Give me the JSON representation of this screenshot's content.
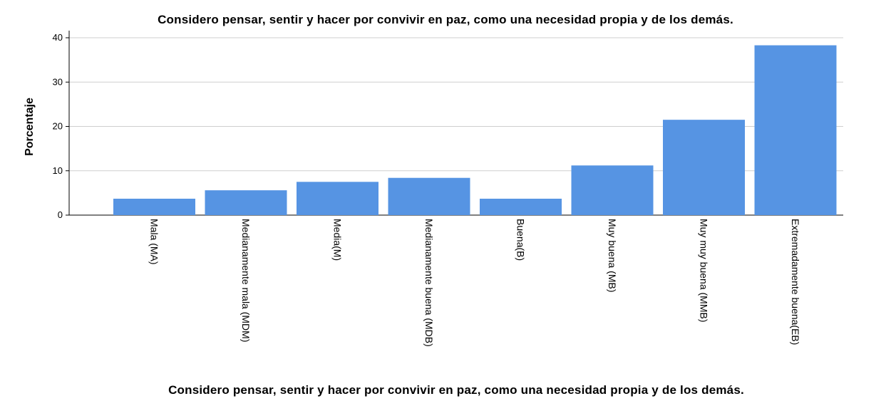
{
  "chart_data": {
    "type": "bar",
    "title": "Considero pensar, sentir y hacer por convivir en paz, como una necesidad propia y de los demás.",
    "xlabel": "Considero pensar, sentir y hacer por convivir en paz, como una necesidad propia y de los demás.",
    "ylabel": "Porcentaje",
    "categories": [
      "Mala (MA)",
      "Medianamente mala (MDM)",
      "Media(M)",
      "Medianamente buena (MDB)",
      "Buena(B)",
      "Muy buena (MB)",
      "Muy muy buena (MMB)",
      "Extremadamente buena(EB)"
    ],
    "values": [
      3.7,
      5.6,
      7.5,
      8.4,
      3.7,
      11.2,
      21.5,
      38.3
    ],
    "ylim": [
      0,
      40
    ],
    "yticks": [
      "0",
      "10",
      "20",
      "30",
      "40"
    ],
    "grid": true,
    "bar_color": "#5694e3",
    "grid_color": "#cfcfcf"
  }
}
